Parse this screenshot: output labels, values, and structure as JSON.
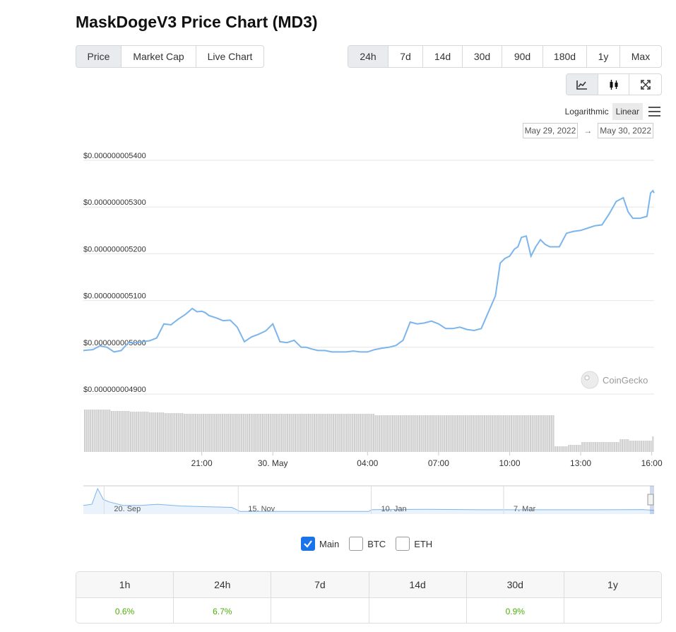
{
  "page": {
    "title": "MaskDogeV3 Price Chart (MD3)"
  },
  "metric_tabs": [
    {
      "label": "Price",
      "active": true
    },
    {
      "label": "Market Cap",
      "active": false
    },
    {
      "label": "Live Chart",
      "active": false
    }
  ],
  "range_tabs": [
    {
      "label": "24h",
      "active": true
    },
    {
      "label": "7d",
      "active": false
    },
    {
      "label": "14d",
      "active": false
    },
    {
      "label": "30d",
      "active": false
    },
    {
      "label": "90d",
      "active": false
    },
    {
      "label": "180d",
      "active": false
    },
    {
      "label": "1y",
      "active": false
    },
    {
      "label": "Max",
      "active": false
    }
  ],
  "chart_type_icons": [
    "line-chart-icon",
    "candlestick-icon",
    "fullscreen-icon"
  ],
  "scale": {
    "logarithmic": "Logarithmic",
    "linear": "Linear",
    "active": "Linear"
  },
  "date_range": {
    "from": "May 29, 2022",
    "to": "May 30, 2022",
    "arrow": "→"
  },
  "watermark": "CoinGecko",
  "colors": {
    "line": "#7cb5ec",
    "volume": "#cfcfcf",
    "positive": "#4eaf0a",
    "active_tab": "#e9ecef"
  },
  "chart_data": {
    "type": "line",
    "title": "",
    "xlabel": "",
    "ylabel": "",
    "ylim": [
      4.9e-09,
      5.4e-09
    ],
    "y_ticks": [
      "$0.000000005400",
      "$0.000000005300",
      "$0.000000005200",
      "$0.000000005100",
      "$0.000000005000",
      "$0.000000004900"
    ],
    "x_ticks": [
      "21:00",
      "30. May",
      "04:00",
      "07:00",
      "10:00",
      "13:00",
      "16:00"
    ],
    "x_tick_hours": [
      3,
      6,
      10,
      13,
      16,
      19,
      22
    ],
    "x_range_hours": [
      -2,
      22.1
    ],
    "series": [
      {
        "x": [
          -2,
          -1.6,
          -1.3,
          -1.0,
          -0.7,
          -0.4,
          -0.1,
          0.2,
          0.5,
          0.8,
          1.1,
          1.4,
          1.7,
          2.0,
          2.3,
          2.6,
          2.8,
          3.0,
          3.15,
          3.3,
          3.6,
          3.9,
          4.2,
          4.5,
          4.8,
          5.1,
          5.4,
          5.7,
          6.0,
          6.3,
          6.6,
          6.9,
          7.2,
          7.4,
          7.6,
          7.9,
          8.2,
          8.5,
          8.8,
          9.1,
          9.4,
          9.7,
          10.0,
          10.3,
          10.6,
          10.9,
          11.2,
          11.5,
          11.8,
          12.1,
          12.4,
          12.7,
          13.0,
          13.3,
          13.6,
          13.9,
          14.2,
          14.5,
          14.8,
          15.1,
          15.4,
          15.6,
          15.8,
          16.0,
          16.2,
          16.35,
          16.5,
          16.7,
          16.9,
          17.1,
          17.3,
          17.5,
          17.7,
          17.9,
          18.1,
          18.4,
          18.7,
          19.0,
          19.3,
          19.6,
          19.9,
          20.2,
          20.5,
          20.8,
          21.0,
          21.2,
          21.5,
          21.8,
          21.95,
          22.05,
          22.1
        ],
        "y": [
          4.993e-09,
          4.995e-09,
          5.003e-09,
          5e-09,
          4.99e-09,
          4.993e-09,
          5.01e-09,
          5.01e-09,
          5.012e-09,
          5.014e-09,
          5.02e-09,
          5.05e-09,
          5.048e-09,
          5.06e-09,
          5.07e-09,
          5.083e-09,
          5.076e-09,
          5.077e-09,
          5.074e-09,
          5.068e-09,
          5.063e-09,
          5.057e-09,
          5.058e-09,
          5.043e-09,
          5.012e-09,
          5.022e-09,
          5.028e-09,
          5.035e-09,
          5.05e-09,
          5.012e-09,
          5.01e-09,
          5.015e-09,
          5e-09,
          5e-09,
          4.997e-09,
          4.993e-09,
          4.993e-09,
          4.99e-09,
          4.99e-09,
          4.99e-09,
          4.992e-09,
          4.99e-09,
          4.99e-09,
          4.995e-09,
          4.998e-09,
          5e-09,
          5.004e-09,
          5.015e-09,
          5.054e-09,
          5.05e-09,
          5.052e-09,
          5.056e-09,
          5.05e-09,
          5.04e-09,
          5.04e-09,
          5.043e-09,
          5.038e-09,
          5.036e-09,
          5.04e-09,
          5.075e-09,
          5.11e-09,
          5.18e-09,
          5.19e-09,
          5.195e-09,
          5.21e-09,
          5.215e-09,
          5.235e-09,
          5.238e-09,
          5.195e-09,
          5.215e-09,
          5.23e-09,
          5.22e-09,
          5.215e-09,
          5.215e-09,
          5.215e-09,
          5.244e-09,
          5.248e-09,
          5.25e-09,
          5.255e-09,
          5.26e-09,
          5.262e-09,
          5.285e-09,
          5.312e-09,
          5.32e-09,
          5.29e-09,
          5.276e-09,
          5.276e-09,
          5.28e-09,
          5.33e-09,
          5.335e-09,
          5.33e-09
        ]
      }
    ],
    "volume": [
      60,
      60,
      60,
      60,
      60,
      60,
      60,
      60,
      60,
      60,
      60,
      60,
      60,
      60,
      58,
      58,
      58,
      58,
      58,
      58,
      58,
      58,
      58,
      58,
      57,
      57,
      57,
      57,
      57,
      57,
      57,
      57,
      57,
      57,
      56,
      56,
      56,
      56,
      56,
      56,
      56,
      56,
      55,
      55,
      55,
      55,
      55,
      55,
      55,
      55,
      55,
      55,
      54,
      54,
      54,
      54,
      54,
      54,
      54,
      54,
      54,
      54,
      54,
      54,
      54,
      54,
      54,
      54,
      54,
      54,
      54,
      54,
      54,
      54,
      54,
      54,
      54,
      54,
      54,
      54,
      54,
      54,
      54,
      54,
      54,
      54,
      54,
      54,
      54,
      54,
      54,
      54,
      54,
      54,
      54,
      54,
      54,
      54,
      54,
      54,
      54,
      54,
      54,
      54,
      54,
      54,
      54,
      54,
      54,
      54,
      54,
      54,
      54,
      54,
      54,
      54,
      54,
      54,
      54,
      54,
      54,
      54,
      54,
      54,
      54,
      54,
      54,
      54,
      54,
      54,
      54,
      54,
      54,
      54,
      54,
      54,
      54,
      54,
      54,
      54,
      54,
      54,
      54,
      54,
      54,
      54,
      54,
      54,
      54,
      54,
      54,
      54,
      52,
      52,
      52,
      52,
      52,
      52,
      52,
      52,
      52,
      52,
      52,
      52,
      52,
      52,
      52,
      52,
      52,
      52,
      52,
      52,
      52,
      52,
      52,
      52,
      52,
      52,
      52,
      52,
      52,
      52,
      52,
      52,
      52,
      52,
      52,
      52,
      52,
      52,
      52,
      52,
      52,
      52,
      52,
      52,
      52,
      52,
      52,
      52,
      52,
      52,
      52,
      52,
      52,
      52,
      52,
      52,
      52,
      52,
      52,
      52,
      52,
      52,
      52,
      52,
      52,
      52,
      52,
      52,
      52,
      52,
      52,
      52,
      52,
      52,
      52,
      52,
      52,
      52,
      52,
      52,
      52,
      52,
      52,
      52,
      52,
      52,
      52,
      52,
      52,
      52,
      52,
      52,
      52,
      52,
      8,
      8,
      8,
      8,
      8,
      8,
      8,
      10,
      10,
      10,
      10,
      10,
      10,
      10,
      14,
      14,
      14,
      14,
      14,
      14,
      14,
      14,
      14,
      14,
      14,
      14,
      14,
      14,
      14,
      14,
      14,
      14,
      14,
      14,
      18,
      18,
      18,
      18,
      18,
      16,
      16,
      16,
      16,
      16,
      16,
      16,
      16,
      16,
      16,
      16,
      16,
      22
    ]
  },
  "navigator": {
    "labels": [
      "20. Sep",
      "15. Nov",
      "10. Jan",
      "7. Mar"
    ],
    "points": [
      [
        0,
        0.3
      ],
      [
        0.015,
        0.35
      ],
      [
        0.025,
        1.0
      ],
      [
        0.035,
        0.55
      ],
      [
        0.045,
        0.45
      ],
      [
        0.07,
        0.3
      ],
      [
        0.1,
        0.3
      ],
      [
        0.13,
        0.35
      ],
      [
        0.17,
        0.28
      ],
      [
        0.21,
        0.25
      ],
      [
        0.26,
        0.22
      ],
      [
        0.275,
        0.05
      ],
      [
        0.33,
        0.05
      ],
      [
        0.42,
        0.05
      ],
      [
        0.5,
        0.05
      ],
      [
        0.505,
        0.12
      ],
      [
        0.52,
        0.13
      ],
      [
        0.6,
        0.14
      ],
      [
        0.7,
        0.12
      ],
      [
        0.8,
        0.12
      ],
      [
        0.9,
        0.12
      ],
      [
        0.98,
        0.13
      ],
      [
        1.0,
        0.1
      ]
    ]
  },
  "legend": [
    {
      "label": "Main",
      "checked": true
    },
    {
      "label": "BTC",
      "checked": false
    },
    {
      "label": "ETH",
      "checked": false
    }
  ],
  "changes": {
    "headers": [
      "1h",
      "24h",
      "7d",
      "14d",
      "30d",
      "1y"
    ],
    "values": [
      "0.6%",
      "6.7%",
      "",
      "",
      "0.9%",
      ""
    ]
  }
}
